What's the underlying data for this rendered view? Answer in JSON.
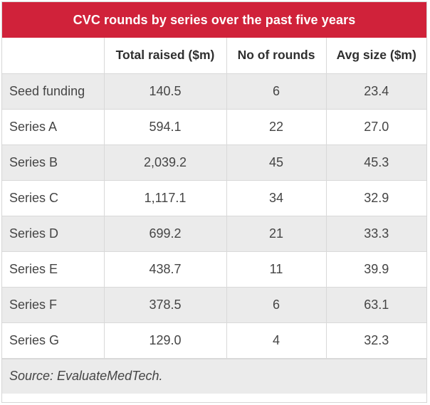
{
  "table": {
    "title": "CVC rounds by series over the past five years",
    "headers": [
      "",
      "Total raised ($m)",
      "No of rounds",
      "Avg size ($m)"
    ],
    "rows": [
      {
        "series": "Seed funding",
        "total_raised": "140.5",
        "rounds": "6",
        "avg_size": "23.4"
      },
      {
        "series": "Series A",
        "total_raised": "594.1",
        "rounds": "22",
        "avg_size": "27.0"
      },
      {
        "series": "Series B",
        "total_raised": "2,039.2",
        "rounds": "45",
        "avg_size": "45.3"
      },
      {
        "series": "Series C",
        "total_raised": "1,117.1",
        "rounds": "34",
        "avg_size": "32.9"
      },
      {
        "series": "Series D",
        "total_raised": "699.2",
        "rounds": "21",
        "avg_size": "33.3"
      },
      {
        "series": "Series E",
        "total_raised": "438.7",
        "rounds": "11",
        "avg_size": "39.9"
      },
      {
        "series": "Series F",
        "total_raised": "378.5",
        "rounds": "6",
        "avg_size": "63.1"
      },
      {
        "series": "Series G",
        "total_raised": "129.0",
        "rounds": "4",
        "avg_size": "32.3"
      }
    ],
    "source": "Source: EvaluateMedTech."
  },
  "colors": {
    "title_background": "#d0223a",
    "title_text": "#ffffff",
    "shaded_row": "#ebebeb",
    "grid_line": "#d9d9d9"
  }
}
